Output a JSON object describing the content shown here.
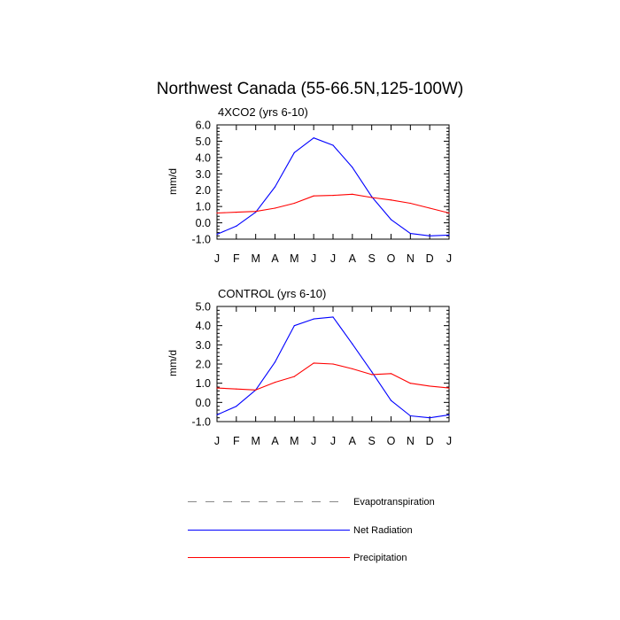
{
  "title": "Northwest Canada (55-66.5N,125-100W)",
  "chart_data": [
    {
      "type": "line",
      "title": "4XCO2 (yrs 6-10)",
      "ylabel": "mm/d",
      "xlabel": "",
      "categories": [
        "J",
        "F",
        "M",
        "A",
        "M",
        "J",
        "J",
        "A",
        "S",
        "O",
        "N",
        "D",
        "J"
      ],
      "ylim": [
        -1.0,
        6.0
      ],
      "yticks": [
        "6.0",
        "5.0",
        "4.0",
        "3.0",
        "2.0",
        "1.0",
        "0.0",
        "-1.0"
      ],
      "grid": false,
      "series": [
        {
          "name": "Net Radiation",
          "color": "#0000ff",
          "values": [
            -0.7,
            -0.2,
            0.65,
            2.2,
            4.3,
            5.2,
            4.75,
            3.4,
            1.6,
            0.2,
            -0.65,
            -0.8,
            -0.75
          ]
        },
        {
          "name": "Precipitation",
          "color": "#ff0000",
          "values": [
            0.6,
            0.65,
            0.7,
            0.9,
            1.2,
            1.65,
            1.68,
            1.75,
            1.55,
            1.4,
            1.2,
            0.9,
            0.6
          ]
        }
      ]
    },
    {
      "type": "line",
      "title": "CONTROL (yrs 6-10)",
      "ylabel": "mm/d",
      "xlabel": "",
      "categories": [
        "J",
        "F",
        "M",
        "A",
        "M",
        "J",
        "J",
        "A",
        "S",
        "O",
        "N",
        "D",
        "J"
      ],
      "ylim": [
        -1.0,
        5.0
      ],
      "yticks": [
        "5.0",
        "4.0",
        "3.0",
        "2.0",
        "1.0",
        "0.0",
        "-1.0"
      ],
      "grid": false,
      "series": [
        {
          "name": "Net Radiation",
          "color": "#0000ff",
          "values": [
            -0.65,
            -0.2,
            0.65,
            2.1,
            4.0,
            4.35,
            4.45,
            3.05,
            1.6,
            0.1,
            -0.7,
            -0.8,
            -0.65
          ]
        },
        {
          "name": "Precipitation",
          "color": "#ff0000",
          "values": [
            0.75,
            0.7,
            0.65,
            1.05,
            1.35,
            2.05,
            2.0,
            1.75,
            1.45,
            1.5,
            1.0,
            0.85,
            0.75
          ]
        }
      ]
    }
  ],
  "legend": {
    "placement": "bottom",
    "entries": [
      {
        "label": "Evapotranspiration",
        "color": "#888888",
        "dash": "dashed"
      },
      {
        "label": "Net Radiation",
        "color": "#0000ff",
        "dash": "solid"
      },
      {
        "label": "Precipitation",
        "color": "#ff0000",
        "dash": "solid"
      }
    ]
  }
}
